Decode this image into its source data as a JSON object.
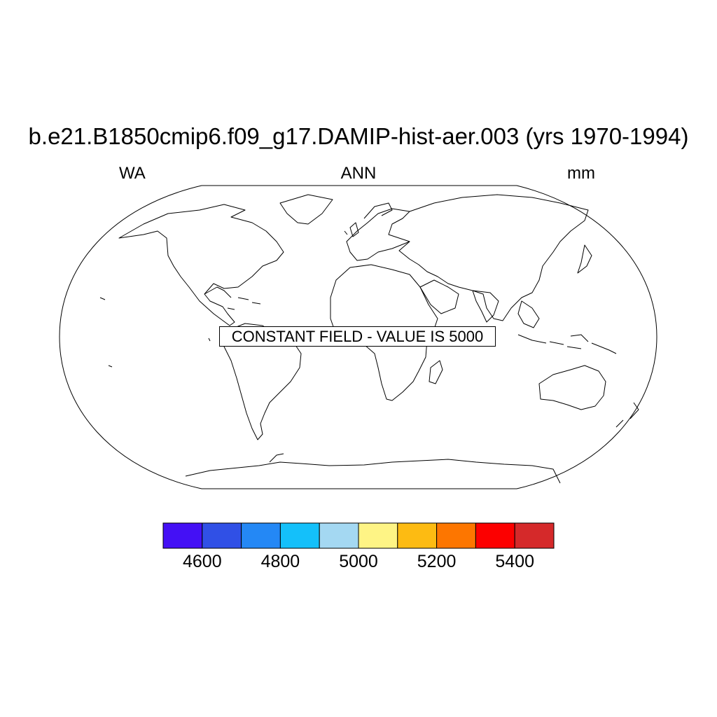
{
  "title": "b.e21.B1850cmip6.f09_g17.DAMIP-hist-aer.003 (yrs 1970-1994)",
  "subtitle_left": "WA",
  "subtitle_center": "ANN",
  "subtitle_right": "mm",
  "notice": "CONSTANT FIELD - VALUE IS 5000",
  "map": {
    "projection": "Robinson",
    "field_value": 5000
  },
  "colorbar": {
    "colors": [
      "#4410f5",
      "#3050e6",
      "#2488f5",
      "#14c0fa",
      "#a4d8f2",
      "#fef485",
      "#fdbb12",
      "#fd7600",
      "#fc0000",
      "#d5292a"
    ],
    "ticks": [
      "4600",
      "4800",
      "5000",
      "5200",
      "5400"
    ]
  }
}
